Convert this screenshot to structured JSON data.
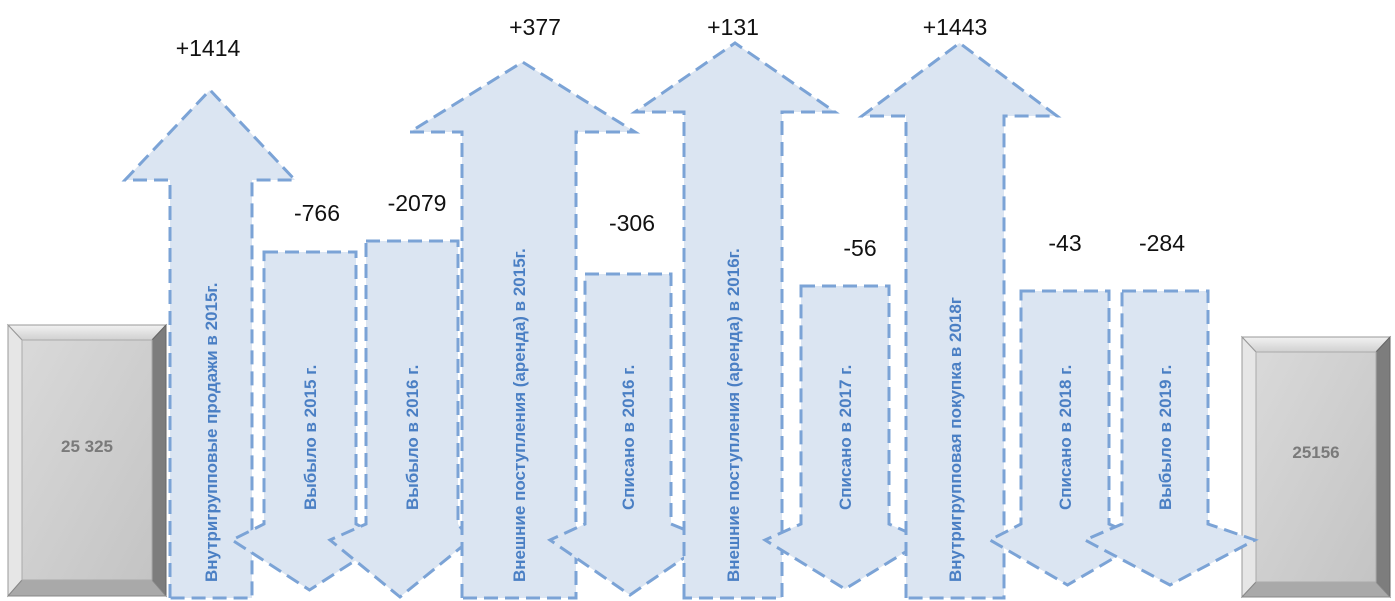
{
  "start_box": {
    "value": "25 325"
  },
  "end_box": {
    "value": "25156"
  },
  "flows": [
    {
      "label": "Внутригрупповые продажи в 2015г.",
      "delta": "+1414",
      "direction": "up",
      "amount": 1414
    },
    {
      "label": "Выбыло в  2015 г.",
      "delta": "-766",
      "direction": "down",
      "amount": -766
    },
    {
      "label": "Выбыло в  2016 г.",
      "delta": "-2079",
      "direction": "down",
      "amount": -2079
    },
    {
      "label": "Внешние поступления (аренда) в 2015г.",
      "delta": "+377",
      "direction": "up",
      "amount": 377
    },
    {
      "label": "Списано в  2016 г.",
      "delta": "-306",
      "direction": "down",
      "amount": -306
    },
    {
      "label": "Внешние поступления (аренда) в 2016г.",
      "delta": "+131",
      "direction": "up",
      "amount": 131
    },
    {
      "label": "Списано в  2017 г.",
      "delta": "-56",
      "direction": "down",
      "amount": -56
    },
    {
      "label": "Внутригрупповая покупка в 2018г",
      "delta": "+1443",
      "direction": "up",
      "amount": 1443
    },
    {
      "label": "Списано в  2018 г.",
      "delta": "-43",
      "direction": "down",
      "amount": -43
    },
    {
      "label": "Выбыло в  2019 г.",
      "delta": "-284",
      "direction": "down",
      "amount": -284
    }
  ],
  "colors": {
    "arrow_fill": "#dbe5f2",
    "arrow_stroke": "#7ba3d6",
    "label_text": "#4a7fc4",
    "box_face": "#cfcfcf"
  }
}
